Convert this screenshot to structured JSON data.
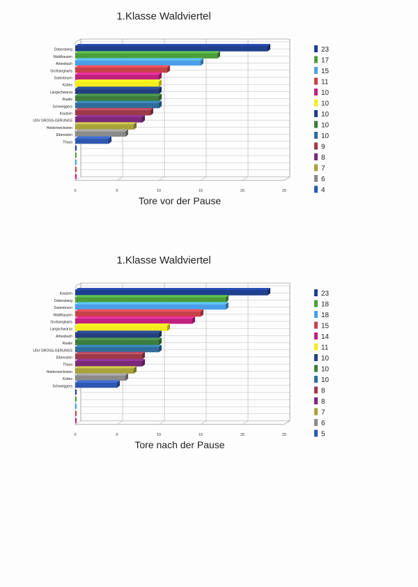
{
  "chart_data": [
    {
      "type": "bar",
      "orientation": "horizontal",
      "title": "1.Klasse Waldviertel",
      "xlabel": "Tore vor der Pause",
      "xlim": [
        0,
        25
      ],
      "xticks": [
        0,
        5,
        10,
        15,
        20,
        25
      ],
      "categories": [
        "Dobersberg",
        "Waldhausen",
        "Arbesbach",
        "Großsiegharts",
        "Gutenbrunn",
        "Kottes",
        "Langschwarza",
        "Raabs",
        "Schweiggers",
        "Kautzen",
        "USV GROSS-GERUNGS",
        "Heidenreichstein",
        "Eibenstein",
        "Thaya"
      ],
      "values": [
        23,
        17,
        15,
        11,
        10,
        10,
        10,
        10,
        10,
        9,
        8,
        7,
        6,
        4
      ],
      "colors": [
        "#1f3f8f",
        "#4c9e3c",
        "#4aa0e8",
        "#c8404a",
        "#c0217e",
        "#f4ec1c",
        "#223f80",
        "#3c7d3c",
        "#2e6e9a",
        "#9c3a4a",
        "#7a2a7a",
        "#a8a23a",
        "#8a8a8a",
        "#2e58b0"
      ],
      "legend": [
        "23",
        "17",
        "15",
        "11",
        "10",
        "10",
        "10",
        "10",
        "10",
        "9",
        "8",
        "7",
        "6",
        "4"
      ]
    },
    {
      "type": "bar",
      "orientation": "horizontal",
      "title": "1.Klasse Waldviertel",
      "xlabel": "Tore nach der Pause",
      "xlim": [
        0,
        25
      ],
      "xticks": [
        0,
        5,
        10,
        15,
        20,
        25
      ],
      "categories": [
        "Kautzen",
        "Dobersberg",
        "Gutenbrunn",
        "Waldhausen",
        "Großsiegharts",
        "Langschwarza",
        "Arbesbach",
        "Raabs",
        "USV GROSS-GERUNGS",
        "Eibenstein",
        "Thaya",
        "Heidenreichstein",
        "Kottes",
        "Schweiggers"
      ],
      "values": [
        23,
        18,
        18,
        15,
        14,
        11,
        10,
        10,
        10,
        8,
        8,
        7,
        6,
        5
      ],
      "colors": [
        "#1f3f8f",
        "#4c9e3c",
        "#4aa0e8",
        "#c8404a",
        "#c0217e",
        "#f4ec1c",
        "#223f80",
        "#3c7d3c",
        "#2e6e9a",
        "#9c3a4a",
        "#7a2a7a",
        "#a8a23a",
        "#8a8a8a",
        "#2e58b0"
      ],
      "legend": [
        "23",
        "18",
        "18",
        "15",
        "14",
        "11",
        "10",
        "10",
        "10",
        "8",
        "8",
        "7",
        "6",
        "5"
      ]
    }
  ]
}
